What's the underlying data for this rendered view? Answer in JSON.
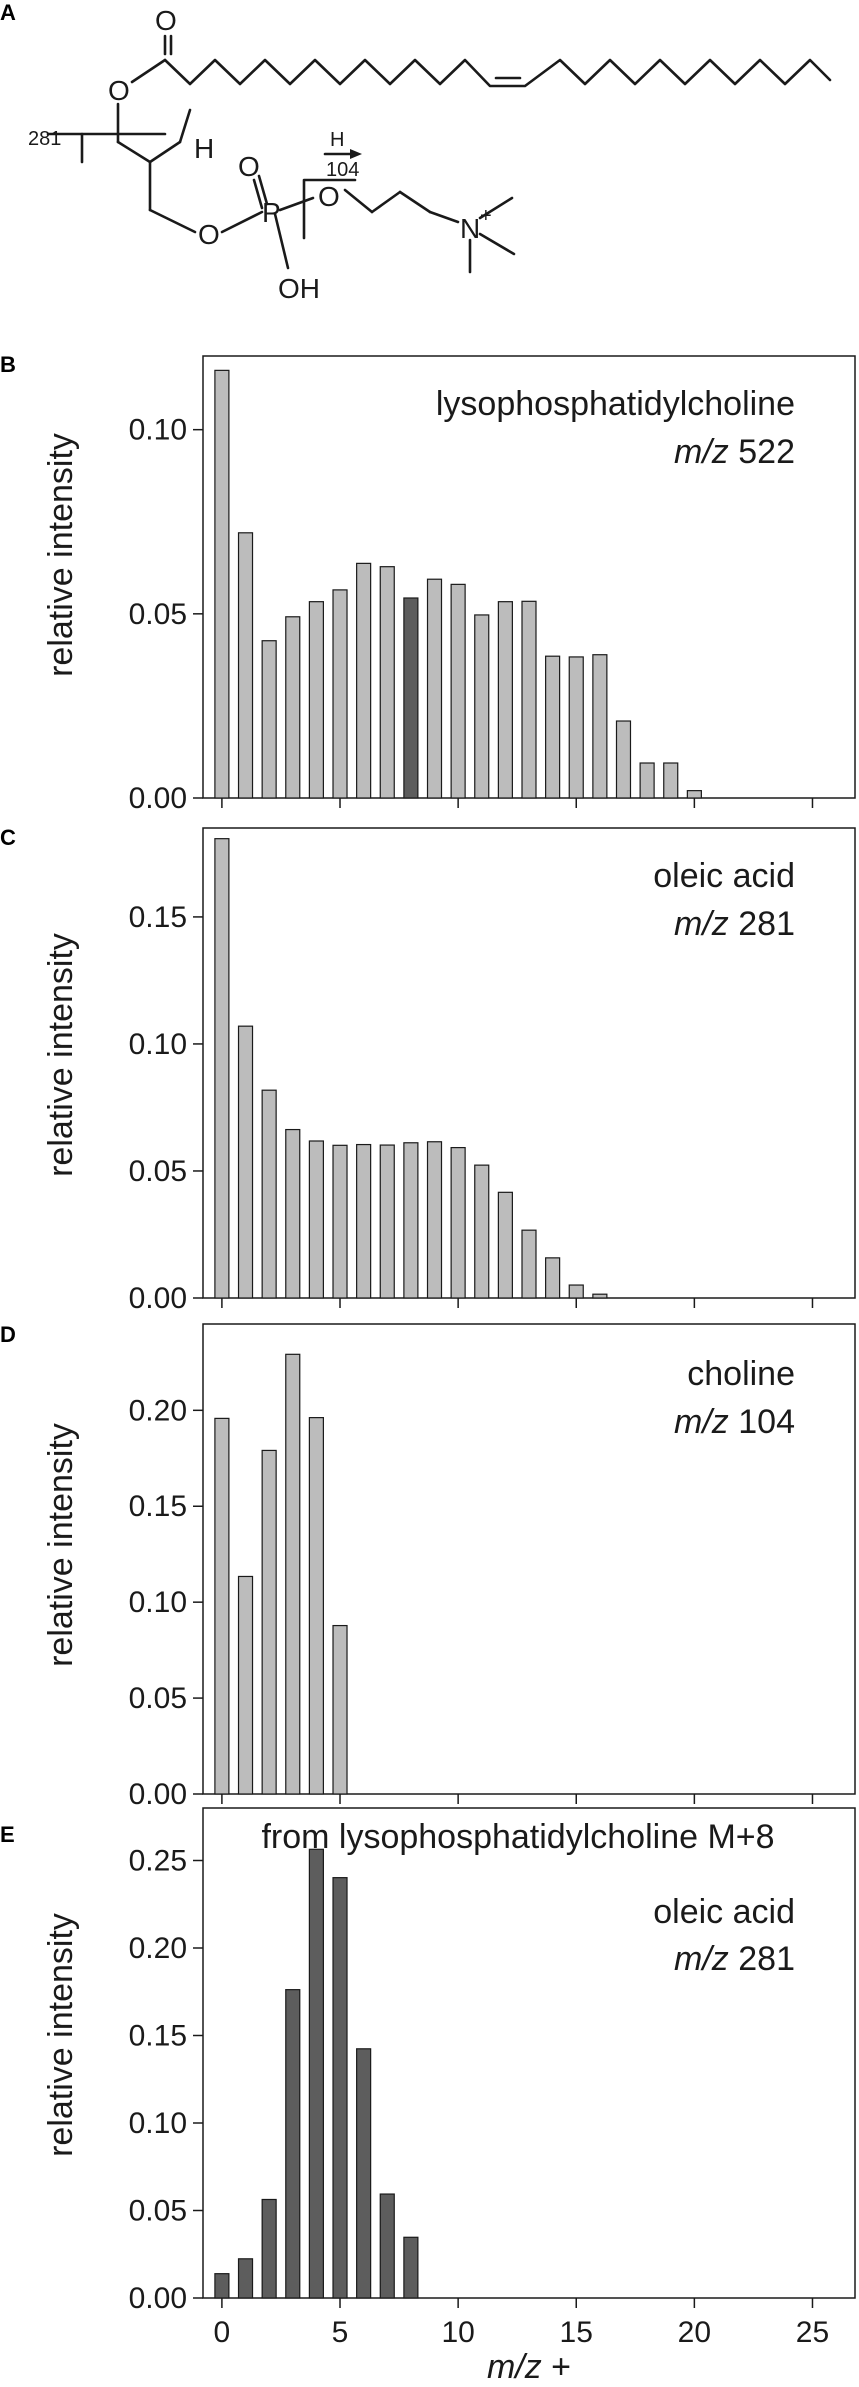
{
  "panel_labels": [
    "A",
    "B",
    "C",
    "D",
    "E"
  ],
  "structure": {
    "atom_O_carbonyl": "O",
    "atom_O_ester": "O",
    "atom_OH": "O",
    "atom_H_hydroxyl": "H",
    "atom_O_phosphate_top": "O",
    "atom_P": "P",
    "atom_O_phosphate_left": "O",
    "atom_OH_phosphate": "OH",
    "atom_O_choline": "O",
    "atom_N": "N",
    "charge_N": "+",
    "fragment_281_label": "281",
    "fragment_104_label": "104",
    "fragment_104_h": "H"
  },
  "axis": {
    "ylabel": "relative intensity",
    "xlabel_italic": "m/z",
    "xlabel_suffix": " +",
    "x_ticks": [
      "0",
      "5",
      "10",
      "15",
      "20",
      "25"
    ]
  },
  "chart_data": [
    {
      "panel": "B",
      "type": "bar",
      "annotation_line1": "lysophosphatidylcholine",
      "annotation_line2_italic": "m/z",
      "annotation_line2_value": " 522",
      "x": [
        0,
        1,
        2,
        3,
        4,
        5,
        6,
        7,
        8,
        9,
        10,
        11,
        12,
        13,
        14,
        15,
        16,
        17,
        18,
        19,
        20
      ],
      "values": [
        0.1161,
        0.072,
        0.0427,
        0.0492,
        0.0533,
        0.0565,
        0.0637,
        0.0628,
        0.0543,
        0.0594,
        0.058,
        0.0497,
        0.0533,
        0.0534,
        0.0385,
        0.0383,
        0.0389,
        0.0209,
        0.0095,
        0.0095,
        0.002
      ],
      "highlight_x": [
        8
      ],
      "ylim": [
        0,
        0.12
      ],
      "yticks": [
        0.0,
        0.05,
        0.1
      ],
      "ytick_labels": [
        "0.00",
        "0.05",
        "0.10"
      ],
      "xlim": [
        -0.8,
        26.8
      ],
      "colors": {
        "bar": "#bcbcbc",
        "highlight": "#5d5d5d"
      }
    },
    {
      "panel": "C",
      "type": "bar",
      "annotation_line1": "oleic acid",
      "annotation_line2_italic": "m/z",
      "annotation_line2_value": " 281",
      "x": [
        0,
        1,
        2,
        3,
        4,
        5,
        6,
        7,
        8,
        9,
        10,
        11,
        12,
        13,
        14,
        15,
        16
      ],
      "values": [
        0.1808,
        0.107,
        0.0818,
        0.0663,
        0.0618,
        0.0601,
        0.0604,
        0.0602,
        0.0611,
        0.0615,
        0.0592,
        0.0523,
        0.0416,
        0.0267,
        0.0158,
        0.0051,
        0.0015
      ],
      "highlight_x": [],
      "ylim": [
        0,
        0.185
      ],
      "yticks": [
        0.0,
        0.05,
        0.1,
        0.15
      ],
      "ytick_labels": [
        "0.00",
        "0.05",
        "0.10",
        "0.15"
      ],
      "xlim": [
        -0.8,
        26.8
      ],
      "colors": {
        "bar": "#bcbcbc"
      }
    },
    {
      "panel": "D",
      "type": "bar",
      "annotation_line1": "choline",
      "annotation_line2_italic": "m/z",
      "annotation_line2_value": " 104",
      "x": [
        0,
        1,
        2,
        3,
        4,
        5
      ],
      "values": [
        0.1958,
        0.1134,
        0.1791,
        0.2292,
        0.1962,
        0.0878
      ],
      "highlight_x": [],
      "ylim": [
        0,
        0.245
      ],
      "yticks": [
        0.0,
        0.05,
        0.1,
        0.15,
        0.2
      ],
      "ytick_labels": [
        "0.00",
        "0.05",
        "0.10",
        "0.15",
        "0.20"
      ],
      "xlim": [
        -0.8,
        26.8
      ],
      "colors": {
        "bar": "#bcbcbc"
      }
    },
    {
      "panel": "E",
      "type": "bar",
      "title": "from lysophosphatidylcholine M+8",
      "annotation_line1": "oleic acid",
      "annotation_line2_italic": "m/z",
      "annotation_line2_value": " 281",
      "x": [
        0,
        1,
        2,
        3,
        4,
        5,
        6,
        7,
        8
      ],
      "values": [
        0.0139,
        0.0224,
        0.0563,
        0.1762,
        0.2564,
        0.2402,
        0.1424,
        0.0594,
        0.0347
      ],
      "highlight_x": [],
      "ylim": [
        0,
        0.28
      ],
      "yticks": [
        0.0,
        0.05,
        0.1,
        0.15,
        0.2,
        0.25
      ],
      "ytick_labels": [
        "0.00",
        "0.05",
        "0.10",
        "0.15",
        "0.20",
        "0.25"
      ],
      "xlim": [
        -0.8,
        26.8
      ],
      "colors": {
        "bar": "#5d5d5d"
      }
    }
  ]
}
